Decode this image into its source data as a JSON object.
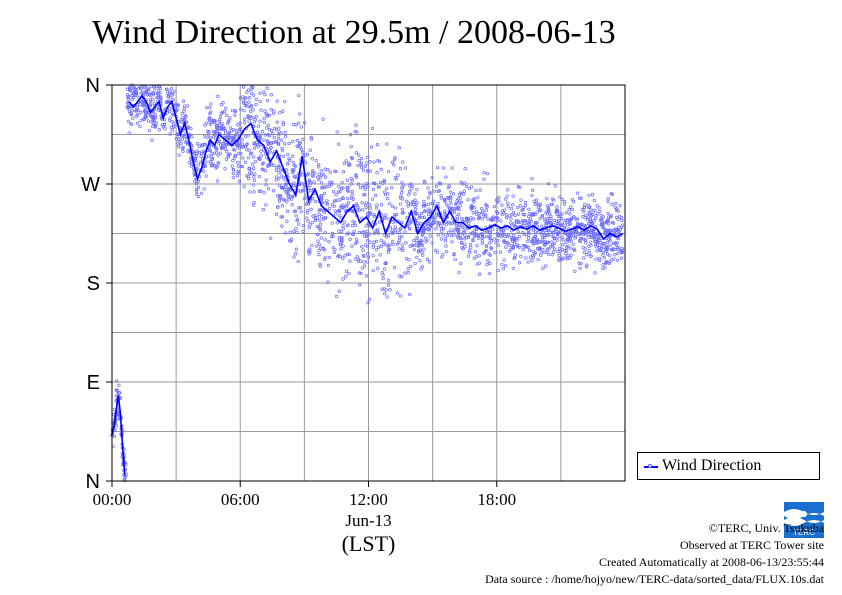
{
  "title": "Wind Direction at 29.5m / 2008-06-13",
  "chart_data": {
    "type": "line",
    "title": "Wind Direction at 29.5m / 2008-06-13",
    "xlabel": "(LST)",
    "x_date_label": "Jun-13",
    "ylabel": "",
    "x_ticks": [
      "00:00",
      "06:00",
      "12:00",
      "18:00"
    ],
    "y_ticks": [
      "N",
      "E",
      "S",
      "W",
      "N"
    ],
    "ylim_degrees": [
      0,
      360
    ],
    "xlim_hours": [
      0,
      24
    ],
    "grid": true,
    "legend_position": "bottom-right",
    "series": [
      {
        "name": "Wind Direction",
        "color": "#0000ff",
        "scatter_color": "#6a6aff",
        "x_hours": [
          0.0,
          0.1,
          0.2,
          0.3,
          0.4,
          0.5,
          0.6,
          0.8,
          1.0,
          1.2,
          1.4,
          1.6,
          1.8,
          2.0,
          2.2,
          2.4,
          2.6,
          2.8,
          3.0,
          3.2,
          3.4,
          3.6,
          3.8,
          4.0,
          4.2,
          4.4,
          4.6,
          4.8,
          5.0,
          5.3,
          5.6,
          5.9,
          6.2,
          6.5,
          6.8,
          7.1,
          7.4,
          7.7,
          8.0,
          8.3,
          8.6,
          8.9,
          9.2,
          9.5,
          9.8,
          10.1,
          10.4,
          10.7,
          11.0,
          11.3,
          11.6,
          11.9,
          12.2,
          12.5,
          12.8,
          13.1,
          13.4,
          13.7,
          14.0,
          14.3,
          14.6,
          14.9,
          15.2,
          15.5,
          15.8,
          16.1,
          16.4,
          16.7,
          17.0,
          17.3,
          17.6,
          17.9,
          18.2,
          18.5,
          18.8,
          19.1,
          19.4,
          19.7,
          20.0,
          20.3,
          20.6,
          20.9,
          21.2,
          21.5,
          21.8,
          22.1,
          22.4,
          22.7,
          23.0,
          23.3,
          23.6,
          23.9
        ],
        "y_degrees": [
          42,
          50,
          65,
          78,
          60,
          30,
          5,
          345,
          340,
          345,
          350,
          345,
          335,
          340,
          345,
          330,
          340,
          345,
          330,
          315,
          325,
          310,
          290,
          275,
          285,
          300,
          310,
          305,
          315,
          310,
          305,
          310,
          320,
          325,
          310,
          305,
          290,
          300,
          285,
          270,
          260,
          295,
          255,
          265,
          250,
          245,
          240,
          235,
          245,
          250,
          235,
          240,
          230,
          245,
          225,
          240,
          235,
          230,
          245,
          225,
          235,
          240,
          250,
          235,
          245,
          235,
          235,
          230,
          232,
          228,
          230,
          233,
          230,
          232,
          228,
          231,
          229,
          232,
          228,
          230,
          232,
          230,
          227,
          229,
          231,
          228,
          232,
          229,
          220,
          225,
          222,
          225
        ]
      }
    ]
  },
  "legend": {
    "label": "Wind Direction"
  },
  "credits": {
    "line1": "©TERC, Univ. Tsukuba",
    "line2": "Observed at TERC Tower site",
    "line3": "Created Automatically at 2008-06-13/23:55:44",
    "line4": "Data source : /home/hojyo/new/TERC-data/sorted_data/FLUX.10s.dat"
  },
  "logo": {
    "text": "TERC",
    "color": "#1a6fd1"
  }
}
